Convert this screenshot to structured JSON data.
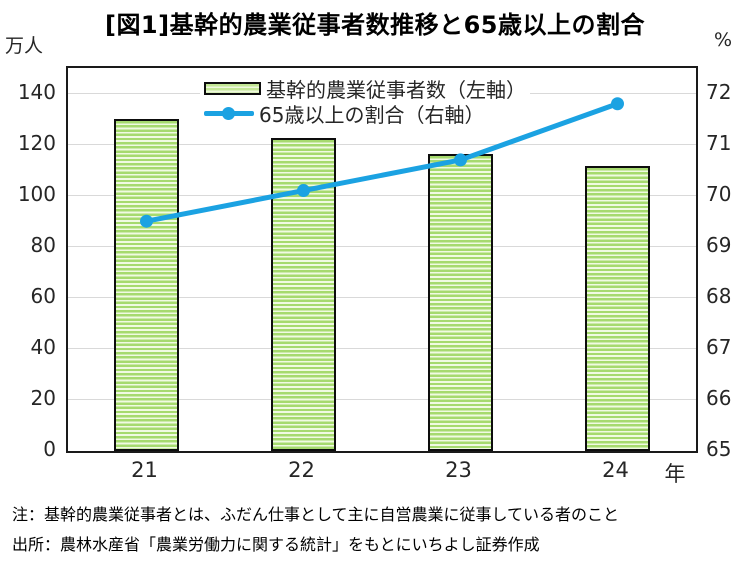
{
  "title": "[図1]基幹的農業従事者数推移と65歳以上の割合",
  "axes": {
    "left_unit": "万人",
    "right_unit": "%",
    "x_suffix": "年"
  },
  "colors": {
    "bar_fill": "#a6da6e",
    "bar_stripe": "#f0fae2",
    "bar_border": "#0d0d0d",
    "line": "#1ba2e2",
    "grid": "#d9d9d9",
    "plot_border": "#1a1a1a",
    "text": "#262626"
  },
  "chart_data": {
    "type": "bar",
    "title": "[図1]基幹的農業従事者数推移と65歳以上の割合",
    "categories": [
      "21",
      "22",
      "23",
      "24"
    ],
    "series": [
      {
        "name": "基幹的農業従事者数（左軸）",
        "type": "bar",
        "axis": "left",
        "values": [
          130,
          122.5,
          116.5,
          111.5
        ],
        "color": "#a6da6e"
      },
      {
        "name": "65歳以上の割合（右軸）",
        "type": "line",
        "axis": "right",
        "values": [
          69.5,
          70.1,
          70.7,
          71.8
        ],
        "color": "#1ba2e2"
      }
    ],
    "ylabel_left": "万人",
    "ylabel_right": "%",
    "ylim_left": [
      0,
      150
    ],
    "ylim_right": [
      65,
      72.5
    ],
    "yticks_left": [
      0,
      20,
      40,
      60,
      80,
      100,
      120,
      140
    ],
    "yticks_right": [
      65,
      66,
      67,
      68,
      69,
      70,
      71,
      72
    ],
    "grid": true,
    "legend_position": "top-center-inside"
  },
  "legend": {
    "items": [
      {
        "label": "基幹的農業従事者数（左軸）"
      },
      {
        "label": "65歳以上の割合（右軸）"
      }
    ]
  },
  "notes": [
    "注：基幹的農業従事者とは、ふだん仕事として主に自営農業に従事している者のこと",
    "出所：農林水産省「農業労働力に関する統計」をもとにいちよし証券作成"
  ]
}
